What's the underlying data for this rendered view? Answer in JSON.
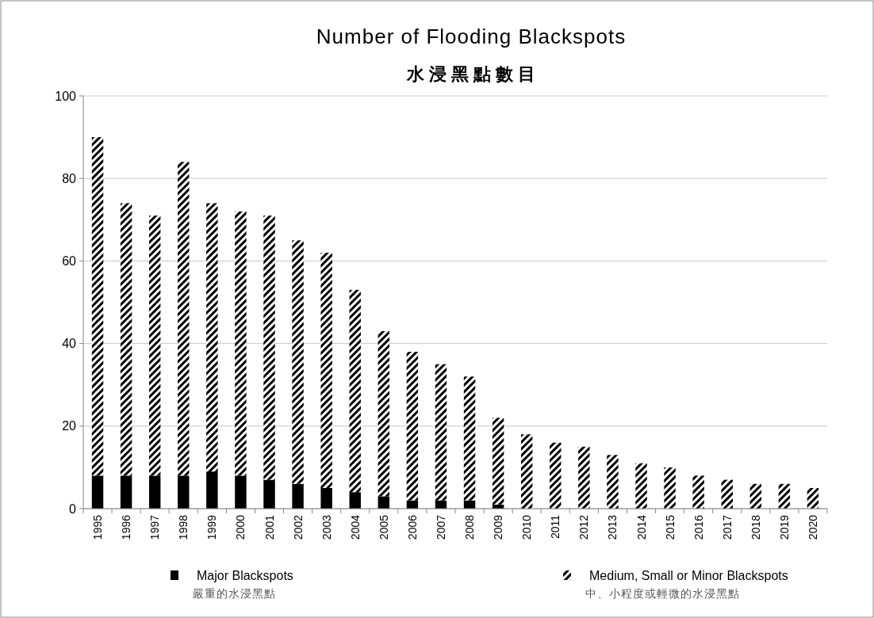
{
  "chart_data": {
    "type": "bar",
    "title": "Number of Flooding Blackspots",
    "subtitle": "水 浸 黑 點 數 目",
    "categories": [
      "1995",
      "1996",
      "1997",
      "1998",
      "1999",
      "2000",
      "2001",
      "2002",
      "2003",
      "2004",
      "2005",
      "2006",
      "2007",
      "2008",
      "2009",
      "2010",
      "2011",
      "2012",
      "2013",
      "2014",
      "2015",
      "2016",
      "2017",
      "2018",
      "2019",
      "2020"
    ],
    "series": [
      {
        "name": "Major Blackspots\n嚴重的水浸黑點",
        "color": "#000000",
        "values": [
          8,
          8,
          8,
          8,
          9,
          8,
          7,
          6,
          5,
          4,
          3,
          2,
          2,
          2,
          1,
          0,
          0,
          0,
          0,
          0,
          0,
          0,
          0,
          0,
          0,
          0
        ]
      },
      {
        "name": "Medium, Small or Minor Blackspots\n中、小程度或輕微的水浸黑點",
        "color": "#000000",
        "values": [
          82,
          66,
          63,
          76,
          65,
          64,
          64,
          59,
          57,
          49,
          40,
          36,
          33,
          30,
          21,
          18,
          16,
          15,
          13,
          11,
          10,
          8,
          7,
          6,
          6,
          5
        ]
      }
    ],
    "stacked": true,
    "ylim": [
      0,
      100
    ],
    "yticks": [
      0,
      20,
      40,
      60,
      80,
      100
    ],
    "grid": "y",
    "legend": "bottom"
  }
}
